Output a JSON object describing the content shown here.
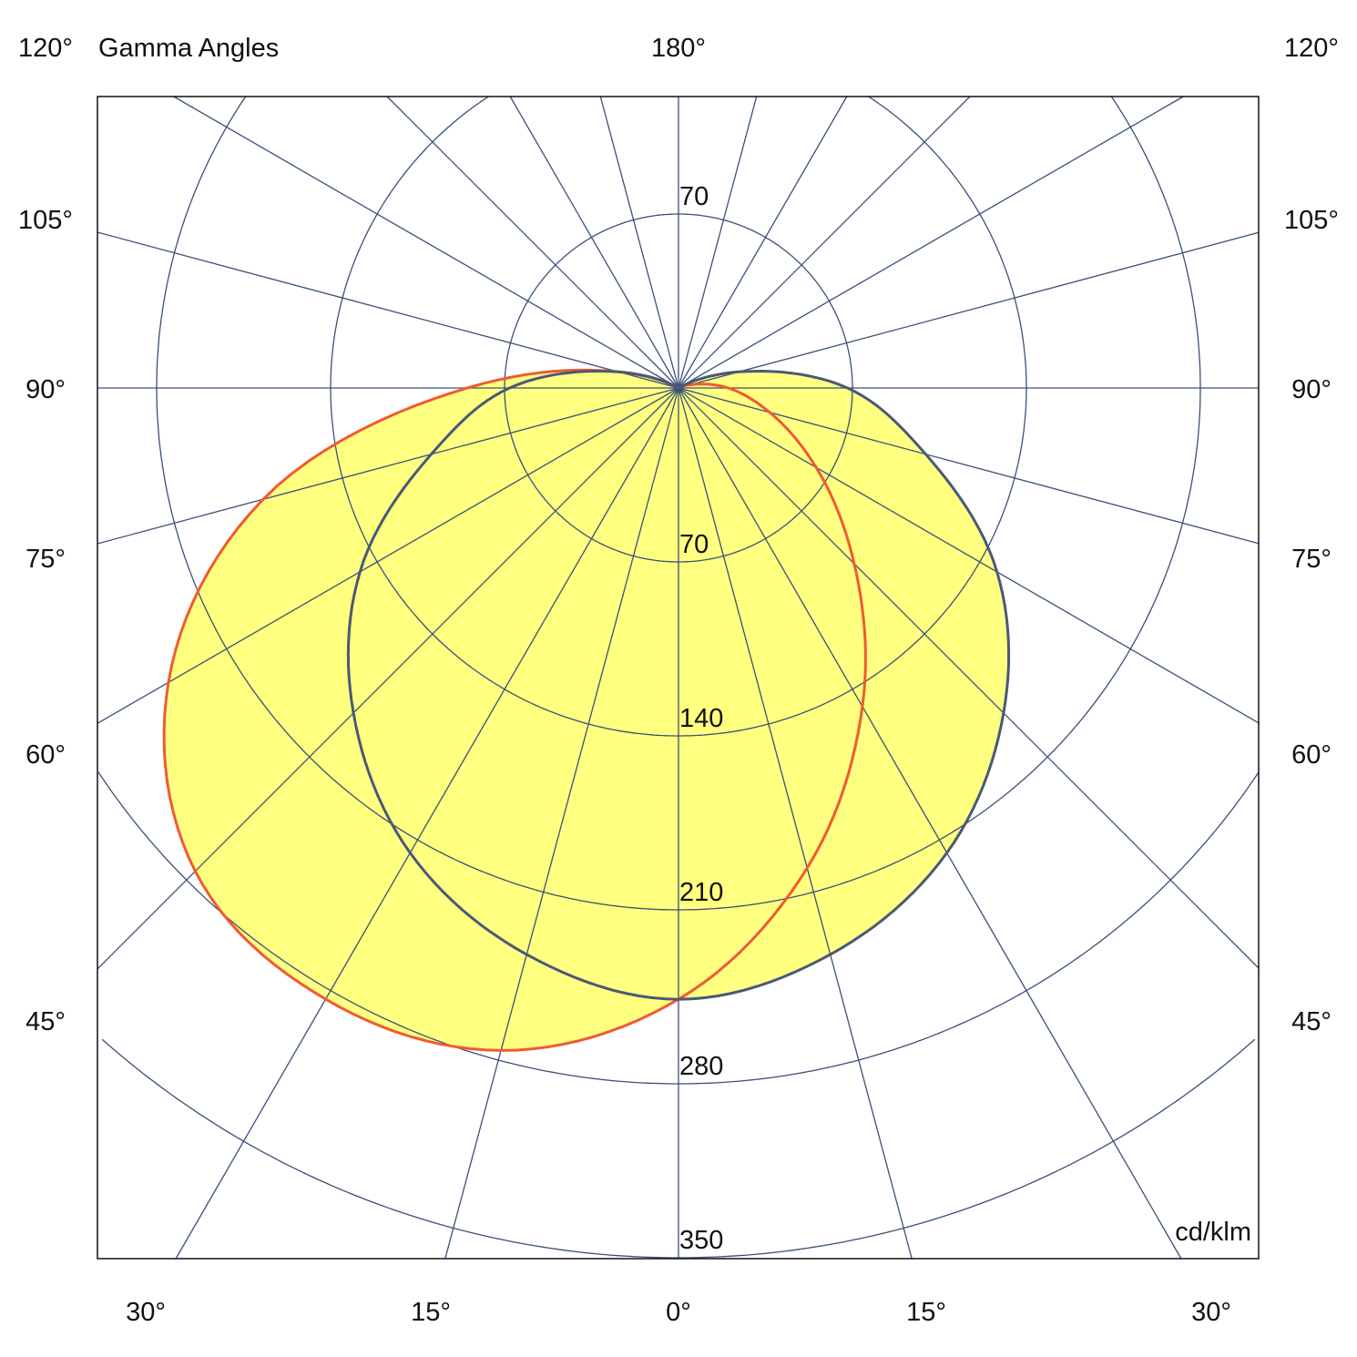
{
  "chart_data": {
    "type": "polar",
    "title": "Gamma Angles",
    "unit": "cd/klm",
    "radial_ticks": [
      70,
      140,
      210,
      280,
      350
    ],
    "radial_max": 490,
    "angle_step": 15,
    "angle_labels": {
      "top": "180°",
      "sides": [
        "120°",
        "105°",
        "90°",
        "75°",
        "60°",
        "45°"
      ],
      "bottom": [
        "30°",
        "15°",
        "0°",
        "15°",
        "30°"
      ]
    },
    "gamma": [
      0,
      15,
      30,
      45,
      60,
      75,
      90,
      105,
      120,
      135,
      150,
      165,
      180
    ],
    "series": [
      {
        "color": "#f05a32",
        "left": [
          246,
          276,
          284,
          275,
          237,
          173,
          85,
          25,
          0,
          0,
          0,
          0,
          0
        ],
        "right": [
          246,
          200,
          148,
          100,
          64,
          38,
          20,
          5,
          0,
          0,
          0,
          0,
          0
        ]
      },
      {
        "color": "#4a5878",
        "left": [
          246,
          236,
          216,
          185,
          148,
          103,
          68,
          25,
          0,
          0,
          0,
          0,
          0
        ],
        "right": [
          246,
          236,
          216,
          185,
          148,
          103,
          68,
          25,
          0,
          0,
          0,
          0,
          0
        ]
      }
    ],
    "fill_color": "#ffff80",
    "grid_color": "#3a5078"
  }
}
